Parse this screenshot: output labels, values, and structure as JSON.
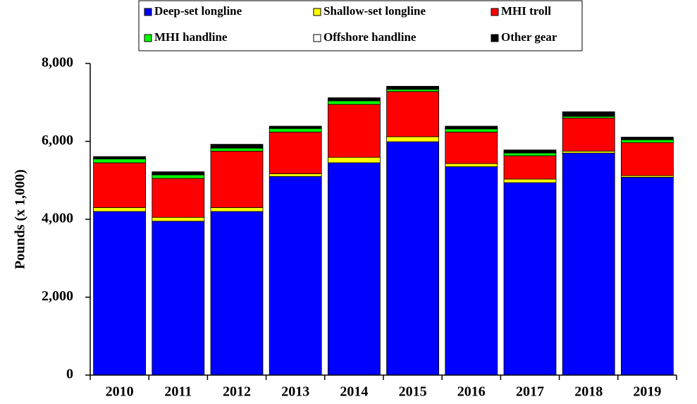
{
  "chart_data": {
    "type": "stacked_bar",
    "y_label": "Pounds  (x 1,000)",
    "categories": [
      "2010",
      "2011",
      "2012",
      "2013",
      "2014",
      "2015",
      "2016",
      "2017",
      "2018",
      "2019"
    ],
    "series": [
      {
        "name": "Deep-set longline",
        "color": "#0000ff",
        "values": [
          4200,
          3950,
          4200,
          5100,
          5450,
          5990,
          5350,
          4940,
          5700,
          5080
        ]
      },
      {
        "name": "Shallow-set longline",
        "color": "#ffff00",
        "values": [
          100,
          100,
          100,
          70,
          140,
          130,
          80,
          90,
          50,
          40
        ]
      },
      {
        "name": "MHI troll",
        "color": "#ff0000",
        "values": [
          1150,
          1000,
          1450,
          1070,
          1360,
          1160,
          810,
          600,
          850,
          850
        ]
      },
      {
        "name": "MHI handline",
        "color": "#00ff00",
        "values": [
          100,
          90,
          75,
          90,
          90,
          55,
          80,
          70,
          40,
          70
        ]
      },
      {
        "name": "Offshore handline",
        "color": "#ffffff",
        "values": [
          10,
          10,
          10,
          10,
          10,
          10,
          10,
          10,
          10,
          10
        ]
      },
      {
        "name": "Other gear",
        "color": "#000000",
        "values": [
          50,
          70,
          90,
          50,
          70,
          70,
          60,
          70,
          110,
          60
        ]
      }
    ],
    "ylim": [
      0,
      8000
    ],
    "yticks": [
      0,
      {
        "value": 2000,
        "label": "2,000"
      },
      {
        "value": 4000,
        "label": "4,000"
      },
      {
        "value": 6000,
        "label": "6,000"
      },
      {
        "value": 8000,
        "label": "8,000"
      }
    ],
    "legend": "top"
  }
}
